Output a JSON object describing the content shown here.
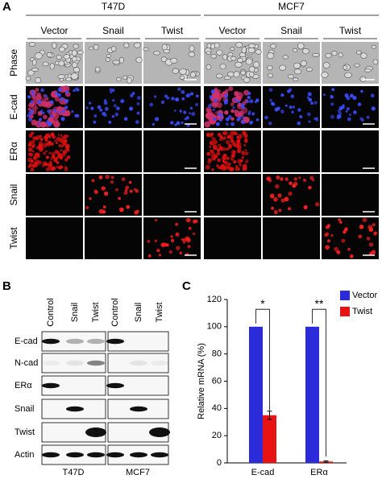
{
  "panel_a": {
    "label": "A",
    "groups": [
      "T47D",
      "MCF7"
    ],
    "columns": [
      "Vector",
      "Snail",
      "Twist",
      "Vector",
      "Snail",
      "Twist"
    ],
    "rows": [
      "Phase",
      "E-cad",
      "ERα",
      "Snail",
      "Twist"
    ]
  },
  "panel_b": {
    "label": "B",
    "lanes": [
      "Control",
      "Snail",
      "Twist",
      "Control",
      "Snail",
      "Twist"
    ],
    "proteins": [
      "E-cad",
      "N-cad",
      "ERα",
      "Snail",
      "Twist",
      "Actin"
    ],
    "cell_lines": [
      "T47D",
      "MCF7"
    ]
  },
  "panel_c": {
    "label": "C"
  },
  "chart_data": {
    "type": "bar",
    "ylabel": "Relative mRNA (%)",
    "categories": [
      "E-cad",
      "ERα"
    ],
    "series": [
      {
        "name": "Vector",
        "color": "#2b2bd9",
        "values": [
          100,
          100
        ]
      },
      {
        "name": "Twist",
        "color": "#e81414",
        "values": [
          35,
          1
        ],
        "errors": [
          3,
          0.5
        ]
      }
    ],
    "ylim": [
      0,
      120
    ],
    "yticks": [
      0,
      20,
      40,
      60,
      80,
      100,
      120
    ],
    "annotations": [
      "*",
      "**"
    ],
    "legend": "upper right"
  }
}
